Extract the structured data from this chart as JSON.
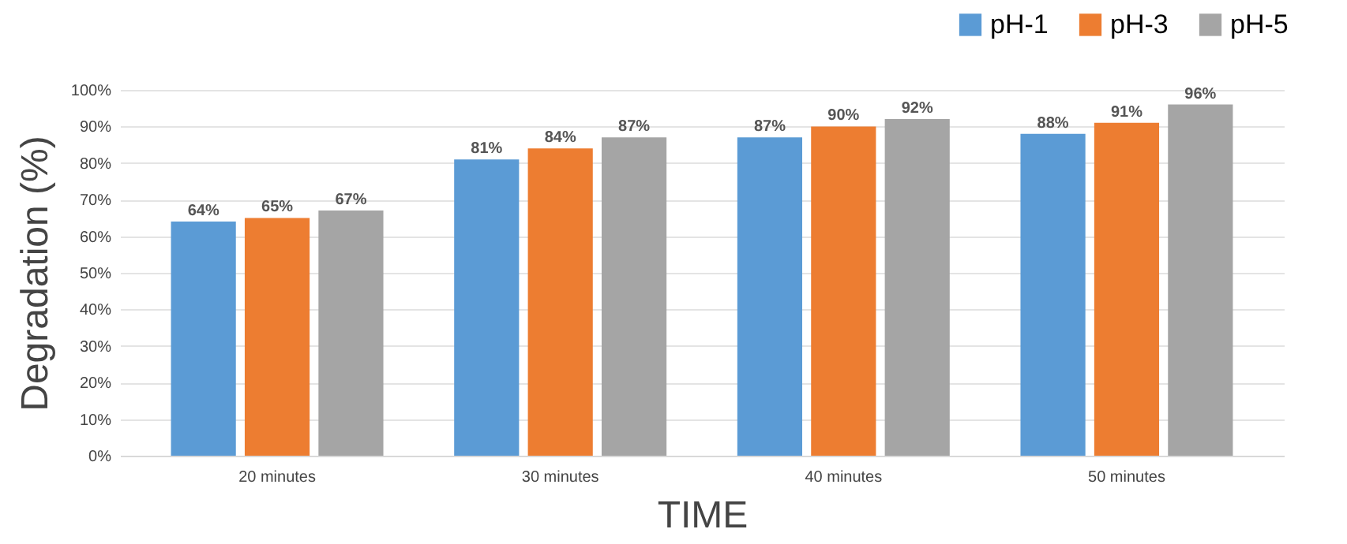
{
  "chart_data": {
    "type": "bar",
    "xlabel": "TIME",
    "ylabel": "Degradation (%)",
    "categories": [
      "20 minutes",
      "30 minutes",
      "40 minutes",
      "50 minutes"
    ],
    "series": [
      {
        "name": "pH-1",
        "color": "#5b9bd5",
        "values": [
          64,
          81,
          87,
          88
        ],
        "value_labels": [
          "64%",
          "81%",
          "87%",
          "88%"
        ]
      },
      {
        "name": "pH-3",
        "color": "#ed7d31",
        "values": [
          65,
          84,
          90,
          91
        ],
        "value_labels": [
          "65%",
          "84%",
          "90%",
          "91%"
        ]
      },
      {
        "name": "pH-5",
        "color": "#a5a5a5",
        "values": [
          67,
          87,
          92,
          96
        ],
        "value_labels": [
          "67%",
          "87%",
          "92%",
          "96%"
        ]
      }
    ],
    "ylim": [
      0,
      100
    ],
    "yticks": [
      {
        "value": 0,
        "label": "0%"
      },
      {
        "value": 10,
        "label": "10%"
      },
      {
        "value": 20,
        "label": "20%"
      },
      {
        "value": 30,
        "label": "30%"
      },
      {
        "value": 40,
        "label": "40%"
      },
      {
        "value": 50,
        "label": "50%"
      },
      {
        "value": 60,
        "label": "60%"
      },
      {
        "value": 70,
        "label": "70%"
      },
      {
        "value": 80,
        "label": "80%"
      },
      {
        "value": 90,
        "label": "90%"
      },
      {
        "value": 100,
        "label": "100%"
      }
    ],
    "grid": "y",
    "legend": "top right"
  }
}
